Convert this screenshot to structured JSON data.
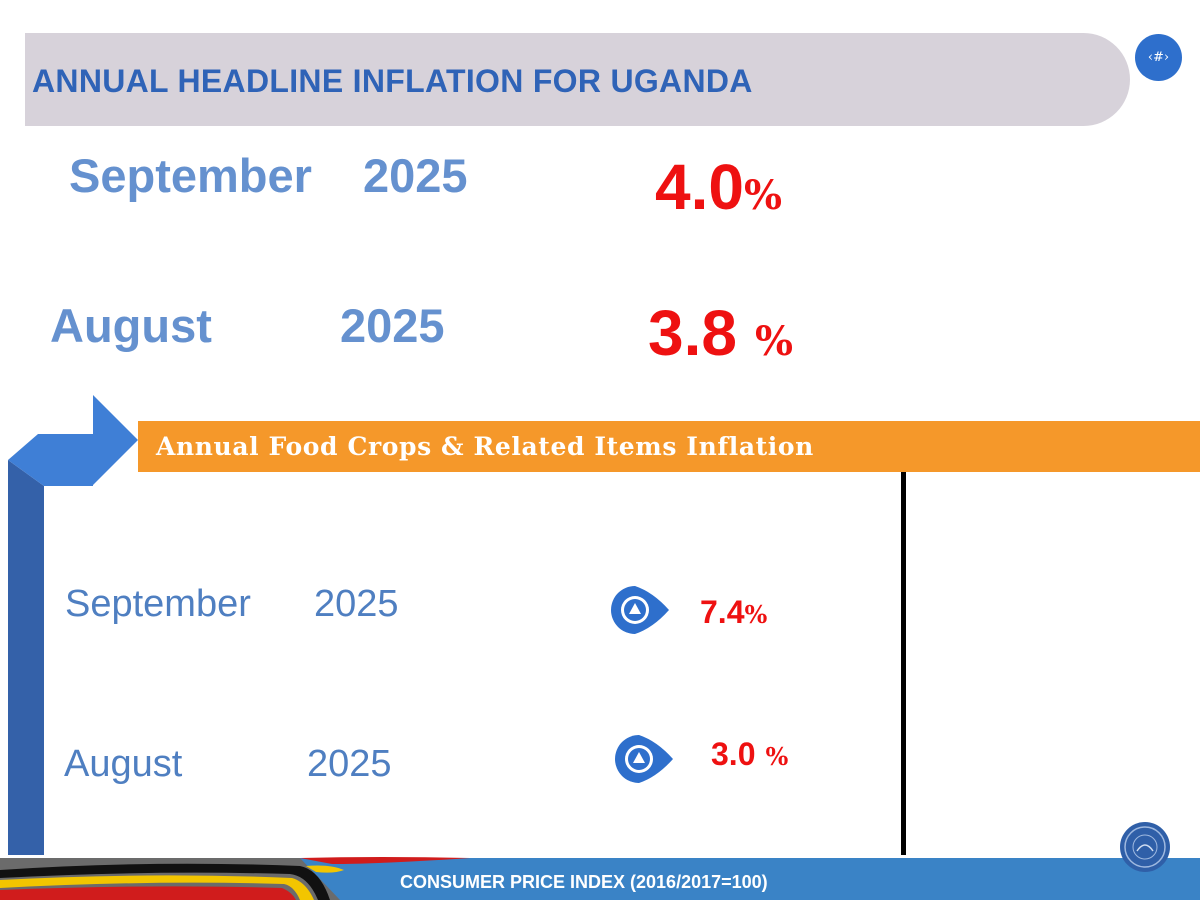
{
  "title": "ANNUAL HEADLINE INFLATION FOR UGANDA",
  "slide_number": "‹#›",
  "headline": {
    "current": {
      "month": "September",
      "year": "2025",
      "value": "4.0",
      "unit": "%"
    },
    "previous": {
      "month": "August",
      "year": "2025",
      "value": "3.8",
      "unit": "%"
    }
  },
  "food_section": {
    "heading": "Annual Food Crops & Related Items Inflation",
    "current": {
      "month": "September",
      "year": "2025",
      "value": "7.4",
      "unit": "%",
      "trend_icon": "up-triangle-icon"
    },
    "previous": {
      "month": "August",
      "year": "2025",
      "value": "3.0",
      "unit": "%",
      "trend_icon": "up-triangle-icon"
    }
  },
  "footer": {
    "text": "CONSUMER PRICE INDEX (2016/2017=100)"
  },
  "colors": {
    "title_text": "#2f63b7",
    "banner_bg": "#d7d2da",
    "label_blue": "#6591cf",
    "value_red": "#ee1111",
    "food_bar": "#f5982a",
    "arrow_dark": "#3461a9",
    "arrow_light": "#3f7fd6",
    "footer_bg": "#3a83c6"
  }
}
